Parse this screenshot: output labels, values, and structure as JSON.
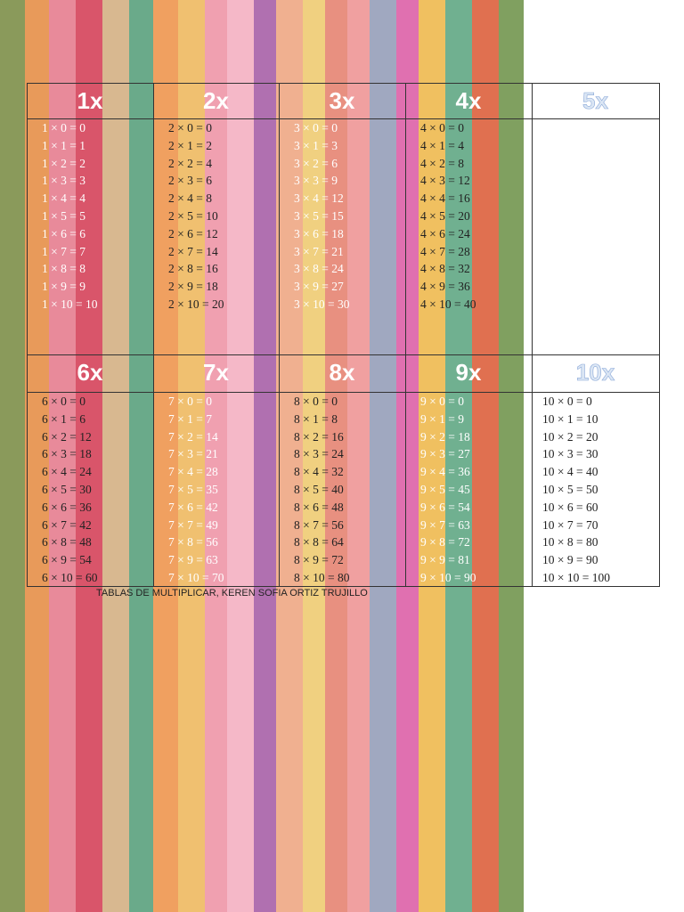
{
  "tables": [
    {
      "title": "1x",
      "rows": [
        "1 × 0 = 0",
        "1 × 1 = 1",
        "1 × 2 = 2",
        "1 × 3 = 3",
        "1 × 4 = 4",
        "1 × 5 = 5",
        "1 × 6 = 6",
        "1 × 7 = 7",
        "1 × 8 = 8",
        "1 × 9 = 9",
        "1 × 10 = 10"
      ]
    },
    {
      "title": "2x",
      "rows": [
        "2 × 0 = 0",
        "2 × 1 = 2",
        "2 × 2 = 4",
        "2 × 3 = 6",
        "2 × 4 = 8",
        "2 × 5 = 10",
        "2 × 6 = 12",
        "2 × 7 = 14",
        "2 × 8 = 16",
        "2 × 9 = 18",
        "2 × 10 = 20"
      ]
    },
    {
      "title": "3x",
      "rows": [
        "3 × 0 = 0",
        "3 × 1 = 3",
        "3 × 2 = 6",
        "3 × 3 = 9",
        "3 × 4 = 12",
        "3 × 5 = 15",
        "3 × 6 = 18",
        "3 × 7 = 21",
        "3 × 8 = 24",
        "3 × 9 = 27",
        "3 × 10 = 30"
      ]
    },
    {
      "title": "4x",
      "rows": [
        "4 × 0 = 0",
        "4 × 1 = 4",
        "4 × 2 = 8",
        "4 × 3 = 12",
        "4 × 4 = 16",
        "4 × 5 = 20",
        "4 × 6 = 24",
        "4 × 7 = 28",
        "4 × 8 = 32",
        "4 × 9 = 36",
        "4 × 10 = 40"
      ]
    },
    {
      "title": "5x",
      "rows": []
    },
    {
      "title": "6x",
      "rows": [
        "6 × 0 = 0",
        "6 × 1 = 6",
        "6 × 2 = 12",
        "6 × 3 = 18",
        "6 × 4 = 24",
        "6 × 5 = 30",
        "6 × 6 = 36",
        "6 × 7 = 42",
        "6 × 8 = 48",
        "6 × 9 = 54",
        "6 × 10 = 60"
      ]
    },
    {
      "title": "7x",
      "rows": [
        "7 × 0 = 0",
        "7 × 1 = 7",
        "7 × 2 = 14",
        "7 × 3 = 21",
        "7 × 4 = 28",
        "7 × 5 = 35",
        "7 × 6 = 42",
        "7 × 7 = 49",
        "7 × 8 = 56",
        "7 × 9 = 63",
        "7 × 10 = 70"
      ]
    },
    {
      "title": "8x",
      "rows": [
        "8 × 0 = 0",
        "8 × 1 = 8",
        "8 × 2 = 16",
        "8 × 3 = 24",
        "8 × 4 = 32",
        "8 × 5 = 40",
        "8 × 6 = 48",
        "8 × 7 = 56",
        "8 × 8 = 64",
        "8 × 9 = 72",
        "8 × 10 = 80"
      ]
    },
    {
      "title": "9x",
      "rows": [
        "9 × 0 = 0",
        "9 × 1 = 9",
        "9 × 2 = 18",
        "9 × 3 = 27",
        "9 × 4 = 36",
        "9 × 5 = 45",
        "9 × 6 = 54",
        "9 × 7 = 63",
        "9 × 8 = 72",
        "9 × 9 = 81",
        "9 × 10 = 90"
      ]
    },
    {
      "title": "10x",
      "rows": [
        "10 × 0 = 0",
        "10 × 1 = 10",
        "10 × 2 = 20",
        "10 × 3 = 30",
        "10 × 4 = 40",
        "10 × 5 = 50",
        "10 × 6 = 60",
        "10 × 7 = 70",
        "10 × 8 = 80",
        "10 × 9 = 90",
        "10 × 10 = 100"
      ]
    }
  ],
  "footer": "TABLAS DE MULTIPLICAR, KEREN SOFIA ORTIZ TRUJILLO"
}
